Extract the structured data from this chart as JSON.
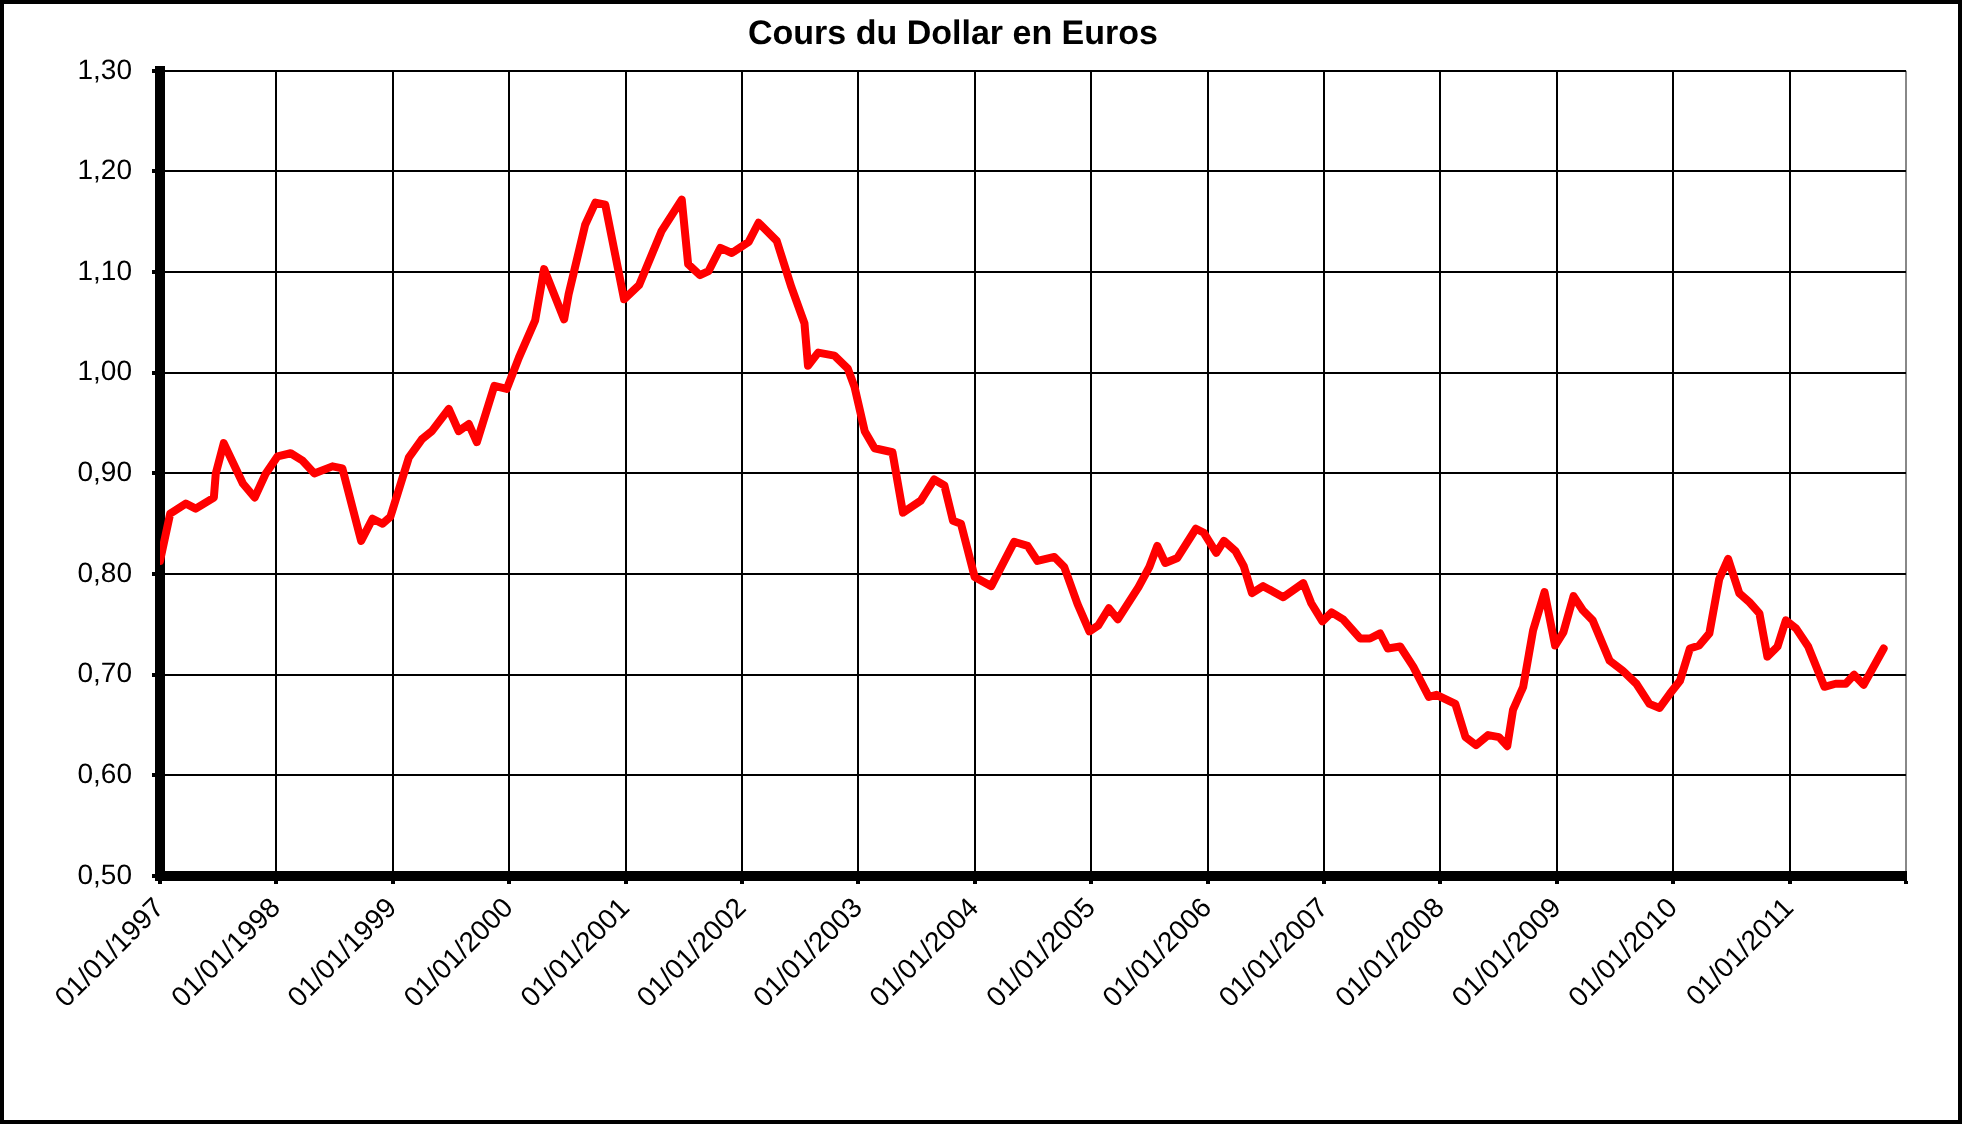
{
  "chart_data": {
    "type": "line",
    "title": "Cours du Dollar en Euros",
    "x": [
      "1997-01-01",
      "1997-02-02",
      "1997-03-23",
      "1997-04-23",
      "1997-06-19",
      "1997-06-25",
      "1997-07-20",
      "1997-09-18",
      "1997-10-25",
      "1997-11-29",
      "1998-01-05",
      "1998-02-15",
      "1998-03-23",
      "1998-04-30",
      "1998-06-26",
      "1998-07-27",
      "1998-09-24",
      "1998-10-30",
      "1998-11-30",
      "1998-12-25",
      "1999-02-21",
      "1999-04-03",
      "1999-05-04",
      "1999-06-26",
      "1999-07-27",
      "1999-08-28",
      "1999-09-22",
      "1999-11-16",
      "1999-12-25",
      "2000-02-01",
      "2000-03-23",
      "2000-04-20",
      "2000-06-22",
      "2000-07-06",
      "2000-08-27",
      "2000-09-28",
      "2000-10-29",
      "2000-12-27",
      "2001-02-12",
      "2001-04-24",
      "2001-06-26",
      "2001-07-16",
      "2001-08-22",
      "2001-09-18",
      "2001-10-25",
      "2001-11-30",
      "2002-01-22",
      "2002-02-22",
      "2002-04-20",
      "2002-06-05",
      "2002-07-16",
      "2002-07-27",
      "2002-08-28",
      "2002-10-18",
      "2002-11-29",
      "2002-12-20",
      "2003-01-21",
      "2003-02-21",
      "2003-04-18",
      "2003-05-21",
      "2003-07-16",
      "2003-08-27",
      "2003-09-28",
      "2003-10-25",
      "2003-11-19",
      "2004-01-01",
      "2004-02-22",
      "2004-05-04",
      "2004-06-15",
      "2004-07-16",
      "2004-09-07",
      "2004-10-08",
      "2004-11-19",
      "2004-12-26",
      "2005-01-23",
      "2005-02-25",
      "2005-03-25",
      "2005-05-29",
      "2005-07-02",
      "2005-07-27",
      "2005-08-21",
      "2005-09-28",
      "2005-11-25",
      "2005-12-20",
      "2006-01-28",
      "2006-02-21",
      "2006-03-29",
      "2006-04-24",
      "2006-05-20",
      "2006-06-24",
      "2006-08-26",
      "2006-10-28",
      "2006-11-22",
      "2006-12-27",
      "2007-01-25",
      "2007-03-02",
      "2007-04-24",
      "2007-05-25",
      "2007-06-26",
      "2007-07-20",
      "2007-08-28",
      "2007-10-08",
      "2007-11-26",
      "2007-12-20",
      "2008-02-17",
      "2008-03-20",
      "2008-04-22",
      "2008-05-30",
      "2008-07-03",
      "2008-07-29",
      "2008-08-16",
      "2008-09-17",
      "2008-10-18",
      "2008-11-23",
      "2008-12-26",
      "2009-01-21",
      "2009-02-22",
      "2009-03-23",
      "2009-04-23",
      "2009-06-15",
      "2009-07-26",
      "2009-09-07",
      "2009-10-18",
      "2009-11-19",
      "2009-12-21",
      "2010-01-22",
      "2010-02-22",
      "2010-03-23",
      "2010-04-24",
      "2010-05-25",
      "2010-06-22",
      "2010-07-27",
      "2010-08-28",
      "2010-09-28",
      "2010-10-23",
      "2010-11-24",
      "2010-12-20",
      "2011-01-21",
      "2011-02-28",
      "2011-04-20",
      "2011-05-25",
      "2011-06-26",
      "2011-07-22",
      "2011-08-21",
      "2011-10-23"
    ],
    "series": [
      {
        "color": "#ff0000",
        "values": [
          0.813,
          0.86,
          0.87,
          0.865,
          0.876,
          0.9,
          0.93,
          0.89,
          0.876,
          0.9,
          0.917,
          0.92,
          0.913,
          0.9,
          0.907,
          0.905,
          0.833,
          0.855,
          0.85,
          0.857,
          0.916,
          0.934,
          0.942,
          0.964,
          0.942,
          0.949,
          0.931,
          0.987,
          0.984,
          1.015,
          1.052,
          1.103,
          1.053,
          1.078,
          1.147,
          1.169,
          1.167,
          1.073,
          1.087,
          1.141,
          1.172,
          1.108,
          1.097,
          1.101,
          1.124,
          1.119,
          1.13,
          1.149,
          1.131,
          1.085,
          1.049,
          1.007,
          1.02,
          1.017,
          1.004,
          0.986,
          0.942,
          0.925,
          0.921,
          0.861,
          0.873,
          0.894,
          0.888,
          0.853,
          0.85,
          0.797,
          0.788,
          0.832,
          0.828,
          0.813,
          0.817,
          0.807,
          0.77,
          0.743,
          0.749,
          0.766,
          0.755,
          0.787,
          0.807,
          0.828,
          0.811,
          0.816,
          0.845,
          0.841,
          0.821,
          0.833,
          0.823,
          0.808,
          0.781,
          0.788,
          0.777,
          0.791,
          0.771,
          0.753,
          0.762,
          0.755,
          0.736,
          0.736,
          0.741,
          0.726,
          0.728,
          0.708,
          0.678,
          0.68,
          0.671,
          0.638,
          0.63,
          0.64,
          0.638,
          0.629,
          0.665,
          0.688,
          0.744,
          0.782,
          0.729,
          0.742,
          0.778,
          0.764,
          0.754,
          0.714,
          0.704,
          0.691,
          0.671,
          0.667,
          0.681,
          0.694,
          0.726,
          0.729,
          0.741,
          0.795,
          0.815,
          0.781,
          0.772,
          0.761,
          0.718,
          0.728,
          0.754,
          0.746,
          0.728,
          0.688,
          0.691,
          0.691,
          0.7,
          0.69,
          0.726
        ]
      }
    ],
    "xlim": [
      "1997-01-01",
      "2012-01-01"
    ],
    "xticks": [
      {
        "value": "1997-01-01",
        "label": "01/01/1997"
      },
      {
        "value": "1998-01-01",
        "label": "01/01/1998"
      },
      {
        "value": "1999-01-01",
        "label": "01/01/1999"
      },
      {
        "value": "2000-01-01",
        "label": "01/01/2000"
      },
      {
        "value": "2001-01-01",
        "label": "01/01/2001"
      },
      {
        "value": "2002-01-01",
        "label": "01/01/2002"
      },
      {
        "value": "2003-01-01",
        "label": "01/01/2003"
      },
      {
        "value": "2004-01-01",
        "label": "01/01/2004"
      },
      {
        "value": "2005-01-01",
        "label": "01/01/2005"
      },
      {
        "value": "2006-01-01",
        "label": "01/01/2006"
      },
      {
        "value": "2007-01-01",
        "label": "01/01/2007"
      },
      {
        "value": "2008-01-01",
        "label": "01/01/2008"
      },
      {
        "value": "2009-01-01",
        "label": "01/01/2009"
      },
      {
        "value": "2010-01-01",
        "label": "01/01/2010"
      },
      {
        "value": "2011-01-01",
        "label": "01/01/2011"
      },
      {
        "value": "2012-01-01",
        "label": null
      }
    ],
    "ylim": [
      0.5,
      1.3
    ],
    "yticks": [
      {
        "value": 0.5,
        "label": "0,50"
      },
      {
        "value": 0.6,
        "label": "0,60"
      },
      {
        "value": 0.7,
        "label": "0,70"
      },
      {
        "value": 0.8,
        "label": "0,80"
      },
      {
        "value": 0.9,
        "label": "0,90"
      },
      {
        "value": 1.0,
        "label": "1,00"
      },
      {
        "value": 1.1,
        "label": "1,10"
      },
      {
        "value": 1.2,
        "label": "1,20"
      },
      {
        "value": 1.3,
        "label": "1,30"
      }
    ],
    "grid": true,
    "marker": "none",
    "line_style": "solid"
  }
}
